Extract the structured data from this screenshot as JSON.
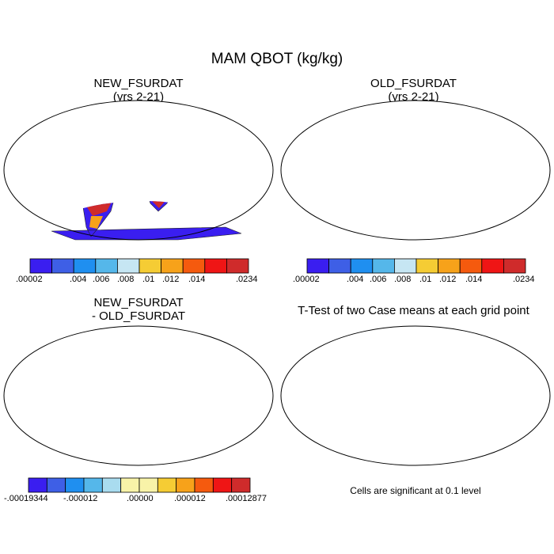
{
  "figure": {
    "title": "MAM QBOT (kg/kg)"
  },
  "panels": [
    {
      "id": "new",
      "title_line1": "NEW_FSURDAT",
      "title_line2": "(yrs 2-21)"
    },
    {
      "id": "old",
      "title_line1": "OLD_FSURDAT",
      "title_line2": "(yrs 2-21)"
    },
    {
      "id": "diff",
      "title_line1": "NEW_FSURDAT",
      "title_line2": "- OLD_FSURDAT"
    },
    {
      "id": "ttest",
      "title_line1": "T-Test of two Case means at each grid point",
      "title_line2": ""
    }
  ],
  "colorbars": {
    "abs": {
      "colors": [
        "#3a1ef0",
        "#3e5fe6",
        "#1f8ff0",
        "#55b7ea",
        "#c6e6f3",
        "#f5cc34",
        "#f7a21a",
        "#f55a0e",
        "#ef1515",
        "#cf2b2b"
      ],
      "labels": [
        ".00002",
        ".004",
        ".006",
        ".008",
        ".01",
        ".012",
        ".014",
        ".0234"
      ]
    },
    "diff": {
      "colors": [
        "#3a1ef0",
        "#3e5fe6",
        "#1f8ff0",
        "#55b7ea",
        "#a9dcef",
        "#f8f3a8",
        "#f8f3a8",
        "#f5cc34",
        "#f7a21a",
        "#f55a0e",
        "#ef1515",
        "#cf2b2b"
      ],
      "labels": [
        "-.00019344",
        "-.000012",
        ".00000",
        ".000012",
        ".00012877"
      ]
    }
  },
  "ttest_note": "Cells are significant at 0.1 level"
}
